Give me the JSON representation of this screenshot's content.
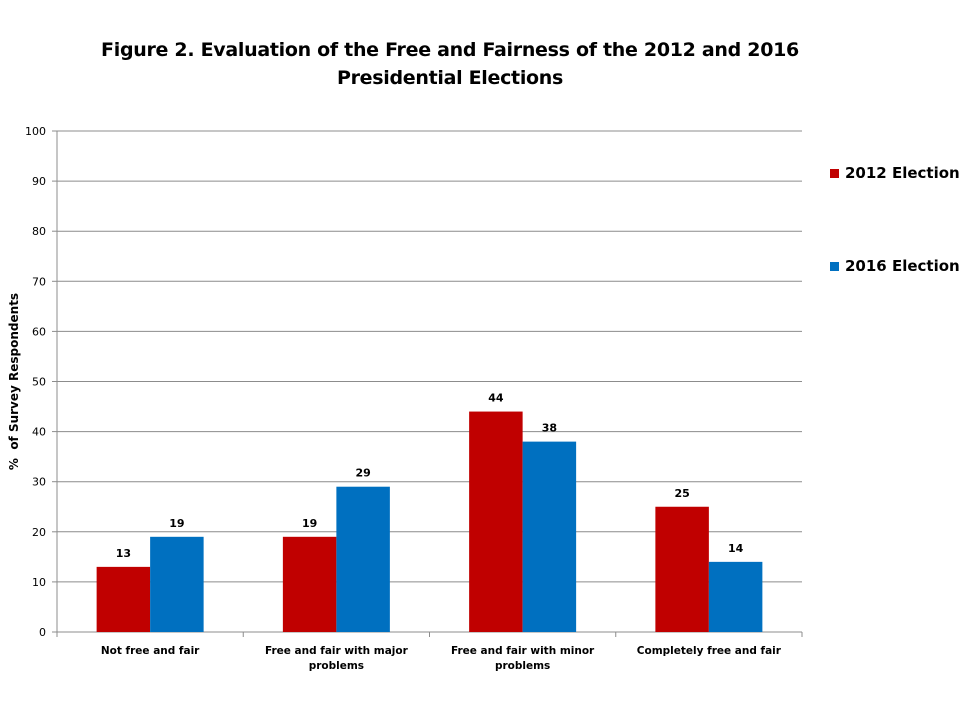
{
  "title": {
    "line1": "Figure 2. Evaluation of the Free and Fairness of the 2012 and 2016",
    "line2": "Presidential Elections"
  },
  "legend": {
    "items": [
      {
        "label": "2012 Election",
        "color": "#C00000"
      },
      {
        "label": "2016 Election",
        "color": "#0070C0"
      }
    ]
  },
  "chart_data": {
    "type": "bar",
    "title": "Figure 2. Evaluation of the Free and Fairness of the 2012 and 2016 Presidential Elections",
    "xlabel": "",
    "ylabel": "%  of Survey Respondents",
    "ylim": [
      0,
      100
    ],
    "yticks": [
      0,
      10,
      20,
      30,
      40,
      50,
      60,
      70,
      80,
      90,
      100
    ],
    "categories": [
      [
        "Not free and fair"
      ],
      [
        "Free and fair with major",
        "problems"
      ],
      [
        "Free and fair with minor",
        "problems"
      ],
      [
        "Completely free and fair"
      ]
    ],
    "series": [
      {
        "name": "2012 Election",
        "color": "#C00000",
        "values": [
          13,
          19,
          44,
          25
        ]
      },
      {
        "name": "2016 Election",
        "color": "#0070C0",
        "values": [
          19,
          29,
          38,
          14
        ]
      }
    ],
    "grid": true,
    "legend_position": "right"
  }
}
